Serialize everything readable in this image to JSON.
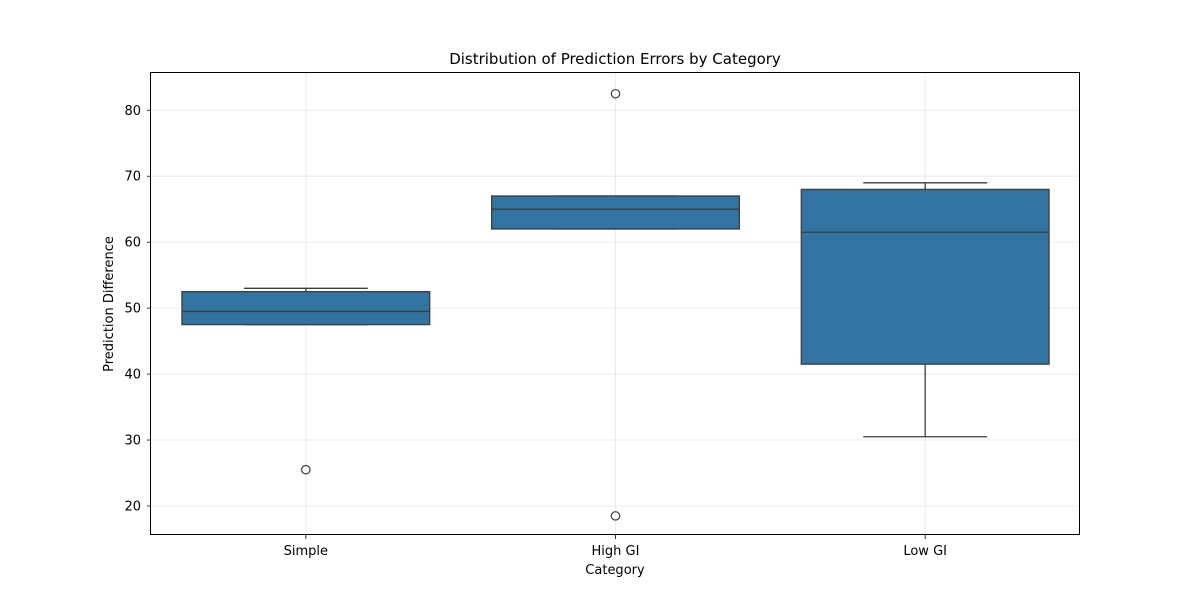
{
  "chart_data": {
    "type": "box",
    "title": "Distribution of Prediction Errors by Category",
    "xlabel": "Category",
    "ylabel": "Prediction Difference",
    "categories": [
      "Simple",
      "High GI",
      "Low GI"
    ],
    "ylim": [
      15.6,
      85.8
    ],
    "yticks": [
      20,
      30,
      40,
      50,
      60,
      70,
      80
    ],
    "grid": true,
    "box_color": "#3274a1",
    "line_color": "#3d3d3d",
    "boxes": [
      {
        "category": "Simple",
        "whisker_low": 47.5,
        "q1": 47.5,
        "median": 49.5,
        "q3": 52.5,
        "whisker_high": 53.0,
        "outliers": [
          25.5
        ]
      },
      {
        "category": "High GI",
        "whisker_low": 62.0,
        "q1": 62.0,
        "median": 65.0,
        "q3": 67.0,
        "whisker_high": 67.0,
        "outliers": [
          82.5,
          18.5
        ]
      },
      {
        "category": "Low GI",
        "whisker_low": 30.5,
        "q1": 41.5,
        "median": 61.5,
        "q3": 68.0,
        "whisker_high": 69.0,
        "outliers": []
      }
    ]
  }
}
